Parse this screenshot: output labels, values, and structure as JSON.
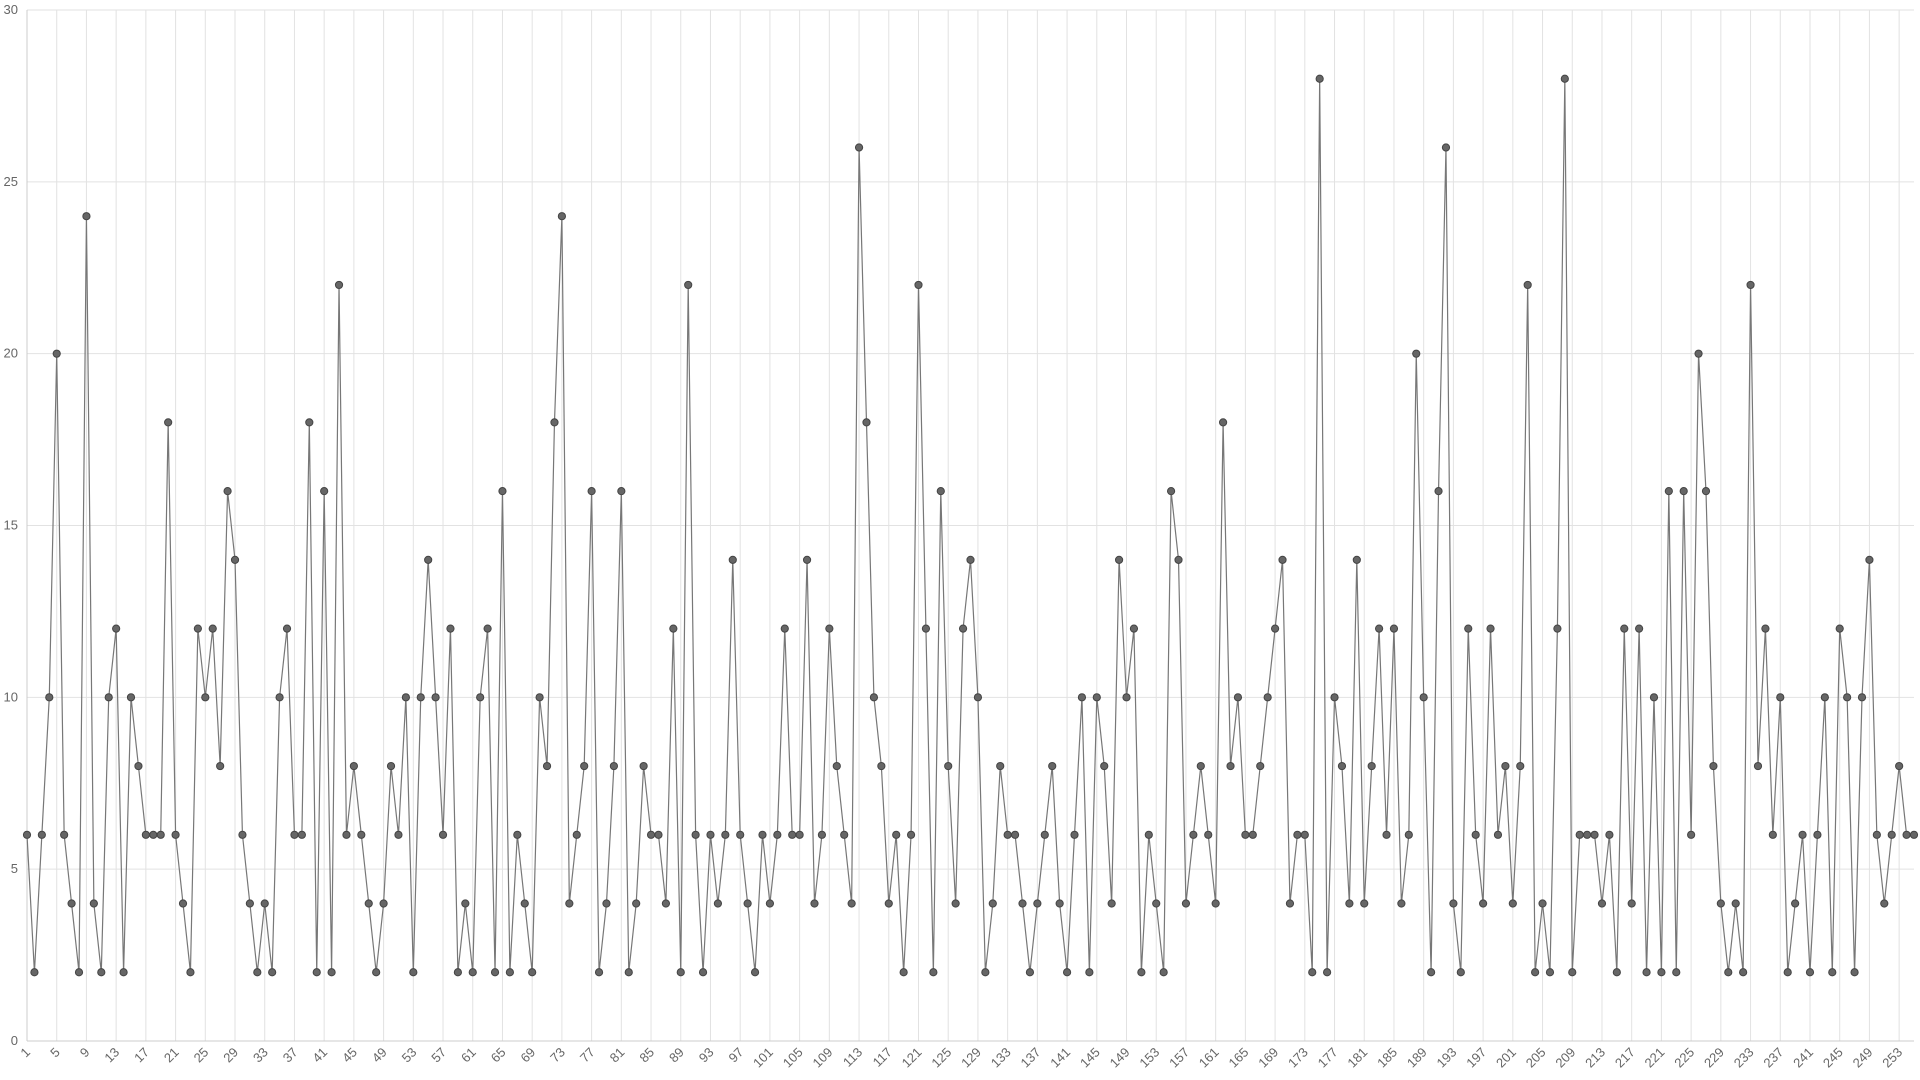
{
  "chart_data": {
    "type": "line",
    "x": [
      1,
      2,
      3,
      4,
      5,
      6,
      7,
      8,
      9,
      10,
      11,
      12,
      13,
      14,
      15,
      16,
      17,
      18,
      19,
      20,
      21,
      22,
      23,
      24,
      25,
      26,
      27,
      28,
      29,
      30,
      31,
      32,
      33,
      34,
      35,
      36,
      37,
      38,
      39,
      40,
      41,
      42,
      43,
      44,
      45,
      46,
      47,
      48,
      49,
      50,
      51,
      52,
      53,
      54,
      55,
      56,
      57,
      58,
      59,
      60,
      61,
      62,
      63,
      64,
      65,
      66,
      67,
      68,
      69,
      70,
      71,
      72,
      73,
      74,
      75,
      76,
      77,
      78,
      79,
      80,
      81,
      82,
      83,
      84,
      85,
      86,
      87,
      88,
      89,
      90,
      91,
      92,
      93,
      94,
      95,
      96,
      97,
      98,
      99,
      100,
      101,
      102,
      103,
      104,
      105,
      106,
      107,
      108,
      109,
      110,
      111,
      112,
      113,
      114,
      115,
      116,
      117,
      118,
      119,
      120,
      121,
      122,
      123,
      124,
      125,
      126,
      127,
      128,
      129,
      130,
      131,
      132,
      133,
      134,
      135,
      136,
      137,
      138,
      139,
      140,
      141,
      142,
      143,
      144,
      145,
      146,
      147,
      148,
      149,
      150,
      151,
      152,
      153,
      154,
      155,
      156,
      157,
      158,
      159,
      160,
      161,
      162,
      163,
      164,
      165,
      166,
      167,
      168,
      169,
      170,
      171,
      172,
      173,
      174,
      175,
      176,
      177,
      178,
      179,
      180,
      181,
      182,
      183,
      184,
      185,
      186,
      187,
      188,
      189,
      190,
      191,
      192,
      193,
      194,
      195,
      196,
      197,
      198,
      199,
      200,
      201,
      202,
      203,
      204,
      205,
      206,
      207,
      208,
      209,
      210,
      211,
      212,
      213,
      214,
      215,
      216,
      217,
      218,
      219,
      220,
      221,
      222,
      223,
      224,
      225,
      226,
      227,
      228,
      229,
      230,
      231,
      232,
      233,
      234,
      235,
      236,
      237,
      238,
      239,
      240,
      241,
      242,
      243,
      244,
      245,
      246,
      247,
      248,
      249,
      250,
      251,
      252,
      253,
      254,
      255
    ],
    "series": [
      {
        "color": "#777777",
        "values": [
          6,
          2,
          6,
          10,
          20,
          6,
          4,
          2,
          24,
          4,
          2,
          10,
          12,
          2,
          10,
          8,
          6,
          6,
          6,
          18,
          6,
          4,
          2,
          12,
          10,
          12,
          8,
          16,
          14,
          6,
          4,
          2,
          4,
          2,
          10,
          12,
          6,
          6,
          18,
          2,
          16,
          2,
          22,
          6,
          8,
          6,
          4,
          2,
          4,
          8,
          6,
          10,
          2,
          10,
          14,
          10,
          6,
          12,
          2,
          4,
          2,
          10,
          12,
          2,
          16,
          2,
          6,
          4,
          2,
          10,
          8,
          18,
          24,
          4,
          6,
          8,
          16,
          2,
          4,
          8,
          16,
          2,
          4,
          8,
          6,
          6,
          4,
          12,
          2,
          22,
          6,
          2,
          6,
          4,
          6,
          14,
          6,
          4,
          2,
          6,
          4,
          6,
          12,
          6,
          6,
          14,
          4,
          6,
          12,
          8,
          6,
          4,
          26,
          18,
          10,
          8,
          4,
          6,
          2,
          6,
          22,
          12,
          2,
          16,
          8,
          4,
          12,
          14,
          10,
          2,
          4,
          8,
          6,
          6,
          4,
          2,
          4,
          6,
          8,
          4,
          2,
          6,
          10,
          2,
          10,
          8,
          4,
          14,
          10,
          12,
          2,
          6,
          4,
          2,
          16,
          14,
          4,
          6,
          8,
          6,
          4,
          18,
          8,
          10,
          6,
          6,
          8,
          10,
          12,
          14,
          4,
          6,
          6,
          2,
          28,
          2,
          10,
          8,
          4,
          14,
          4,
          8,
          12,
          6,
          12,
          4,
          6,
          20,
          10,
          2,
          16,
          26,
          4,
          2,
          12,
          6,
          4,
          12,
          6,
          8,
          4,
          8,
          22,
          2,
          4,
          2,
          12,
          28,
          2,
          6,
          6,
          6,
          4,
          6,
          2,
          12,
          4,
          12,
          2,
          10,
          2,
          16,
          2,
          16,
          6,
          20,
          16,
          8,
          4,
          2,
          4,
          2,
          22,
          8,
          12,
          6,
          10,
          2,
          4,
          6,
          2,
          6,
          10,
          2,
          12,
          10,
          2,
          10,
          14,
          6,
          4,
          6,
          8,
          6,
          6
        ]
      }
    ],
    "xlim": [
      1,
      255
    ],
    "xticks": [
      1,
      5,
      9,
      13,
      17,
      21,
      25,
      29,
      33,
      37,
      41,
      45,
      49,
      53,
      57,
      61,
      65,
      69,
      73,
      77,
      81,
      85,
      89,
      93,
      97,
      101,
      105,
      109,
      113,
      117,
      121,
      125,
      129,
      133,
      137,
      141,
      145,
      149,
      153,
      157,
      161,
      165,
      169,
      173,
      177,
      181,
      185,
      189,
      193,
      197,
      201,
      205,
      209,
      213,
      217,
      221,
      225,
      229,
      233,
      237,
      241,
      245,
      249,
      253
    ],
    "ylim": [
      0,
      30
    ],
    "yticks": [
      0,
      5,
      10,
      15,
      20,
      25,
      30
    ],
    "grid": true
  }
}
